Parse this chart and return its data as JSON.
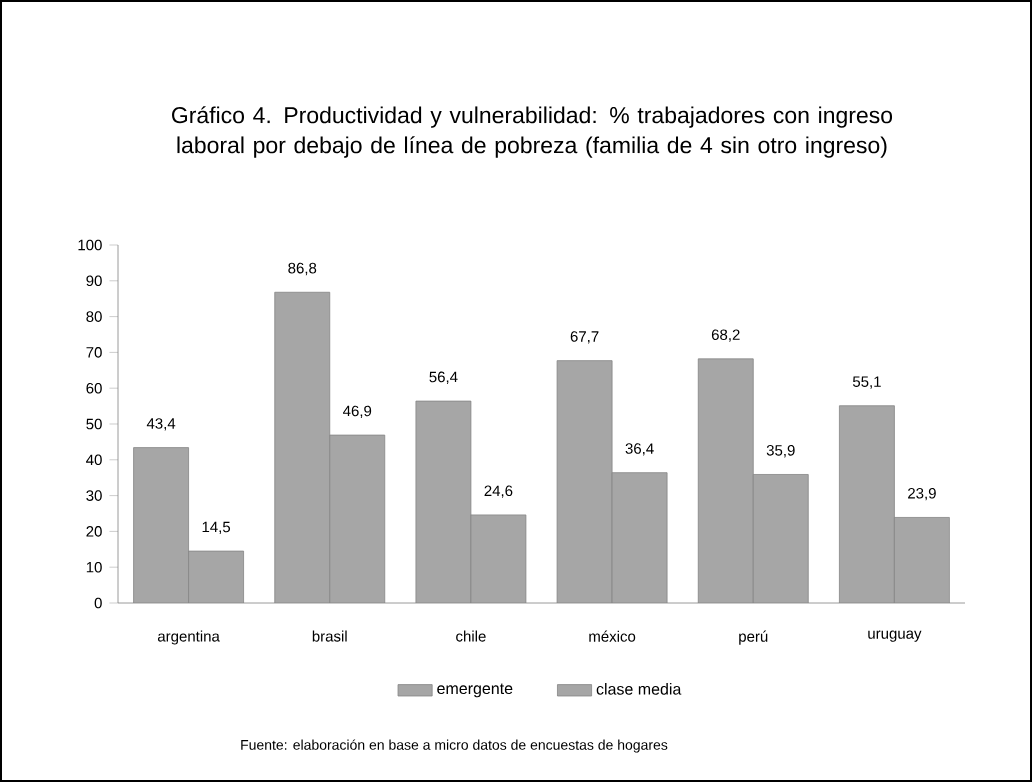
{
  "chart_data": {
    "type": "bar",
    "title": "Gráfico 4. Productividad y vulnerabilidad: % trabajadores con ingreso laboral por debajo de línea de pobreza (familia de 4 sin otro ingreso)",
    "categories": [
      "argentina",
      "brasil",
      "chile",
      "méxico",
      "perú",
      "uruguay"
    ],
    "series": [
      {
        "name": "emergente",
        "color": "#a6a6a6",
        "values": [
          43.4,
          86.8,
          56.4,
          67.7,
          68.2,
          55.1
        ],
        "value_labels": [
          "43,4",
          "86,8",
          "56,4",
          "67,7",
          "68,2",
          "55,1"
        ]
      },
      {
        "name": "clase media",
        "color": "#a6a6a6",
        "values": [
          14.5,
          46.9,
          24.6,
          36.4,
          35.9,
          23.9
        ],
        "value_labels": [
          "14,5",
          "46,9",
          "24,6",
          "36,4",
          "35,9",
          "23,9"
        ]
      }
    ],
    "ylim": [
      0,
      100
    ],
    "yticks": [
      0,
      10,
      20,
      30,
      40,
      50,
      60,
      70,
      80,
      90,
      100
    ],
    "legend": "bottom",
    "grid": false,
    "annotations": [
      "Fuente: elaboración en base a micro datos de encuestas de hogares"
    ]
  }
}
